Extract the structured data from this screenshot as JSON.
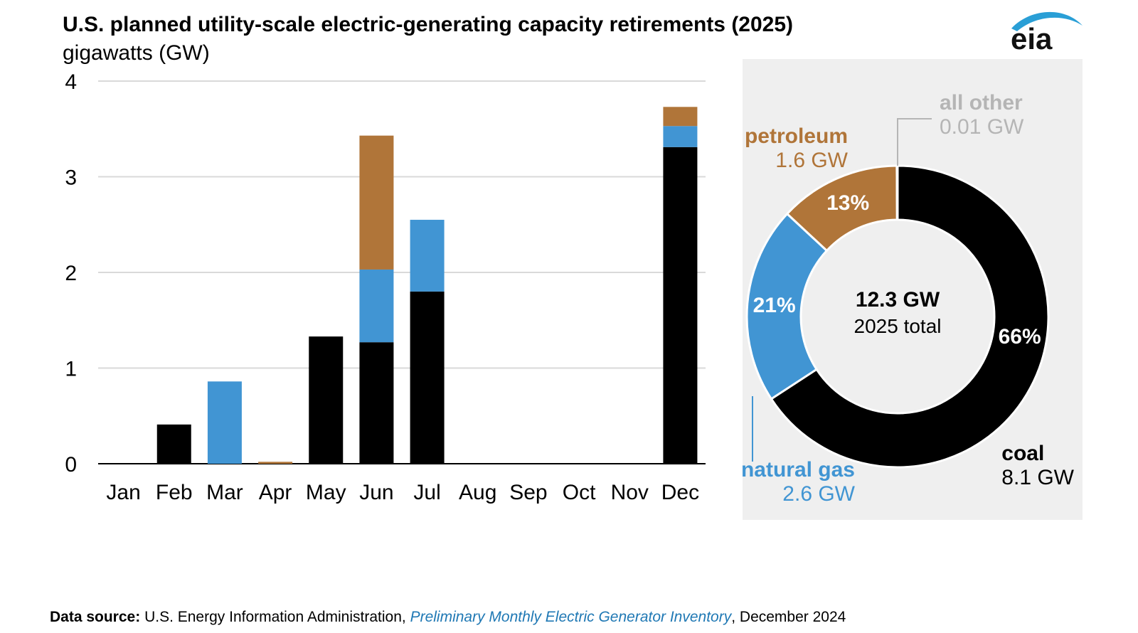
{
  "title": "U.S. planned utility-scale electric-generating capacity retirements (2025)",
  "subtitle": "gigawatts (GW)",
  "logo": {
    "text": "eia",
    "icon": "eia-swoosh-logo"
  },
  "colors": {
    "coal": "#000000",
    "natural_gas": "#4195d3",
    "petroleum": "#b07539",
    "all_other": "#b5b5b5",
    "grid": "#d9d9d9",
    "panel": "#efefef",
    "link": "#1f78b4"
  },
  "chart_data": [
    {
      "type": "bar",
      "stacked": true,
      "title": "U.S. planned utility-scale electric-generating capacity retirements (2025)",
      "ylabel": "gigawatts (GW)",
      "xlabel": "",
      "ylim": [
        0,
        4
      ],
      "yticks": [
        0,
        1,
        2,
        3,
        4
      ],
      "grid": true,
      "categories": [
        "Jan",
        "Feb",
        "Mar",
        "Apr",
        "May",
        "Jun",
        "Jul",
        "Aug",
        "Sep",
        "Oct",
        "Nov",
        "Dec"
      ],
      "series": [
        {
          "name": "coal",
          "key": "coal",
          "values": [
            0,
            0.41,
            0,
            0,
            1.33,
            1.27,
            1.8,
            0,
            0,
            0,
            0,
            3.31
          ]
        },
        {
          "name": "natural gas",
          "key": "natural_gas",
          "values": [
            0,
            0,
            0.86,
            0,
            0,
            0.76,
            0.75,
            0,
            0,
            0,
            0,
            0.22
          ]
        },
        {
          "name": "petroleum",
          "key": "petroleum",
          "values": [
            0,
            0,
            0,
            0.02,
            0,
            1.4,
            0,
            0,
            0,
            0,
            0,
            0.2
          ]
        }
      ]
    },
    {
      "type": "pie",
      "donut": true,
      "center_total": "12.3 GW",
      "center_label": "2025 total",
      "slices": [
        {
          "key": "coal",
          "name": "coal",
          "value_label": "8.1 GW",
          "value": 8.1,
          "percent": 66,
          "percent_label": "66%"
        },
        {
          "key": "natural_gas",
          "name": "natural gas",
          "value_label": "2.6 GW",
          "value": 2.6,
          "percent": 21,
          "percent_label": "21%"
        },
        {
          "key": "petroleum",
          "name": "petroleum",
          "value_label": "1.6 GW",
          "value": 1.6,
          "percent": 13,
          "percent_label": "13%"
        },
        {
          "key": "all_other",
          "name": "all other",
          "value_label": "0.01 GW",
          "value": 0.01,
          "percent": 0,
          "percent_label": ""
        }
      ]
    }
  ],
  "footer": {
    "label": "Data source:",
    "source": "U.S. Energy Information Administration, ",
    "link": "Preliminary Monthly Electric Generator Inventory",
    "date": ", December 2024"
  }
}
